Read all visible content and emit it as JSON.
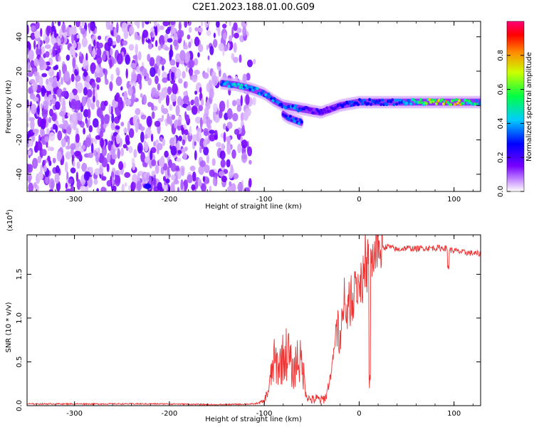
{
  "title": "C2E1.2023.188.01.00.G09",
  "chart_data": [
    {
      "type": "heatmap",
      "xlabel": "Height of straight line (km)",
      "ylabel": "Frequency (Hz)",
      "xlim": [
        -350,
        128
      ],
      "ylim": [
        -50,
        49
      ],
      "xticks": [
        "-300",
        "-200",
        "-100",
        "0",
        "100"
      ],
      "yticks": [
        "-40",
        "-20",
        "0",
        "20",
        "40"
      ],
      "colorbar": {
        "label": "Normalized spectral amplitude",
        "range": [
          0,
          1
        ],
        "ticks": [
          "0.0",
          "0.2",
          "0.4",
          "0.6",
          "0.8"
        ],
        "colormap": [
          "#ffffff",
          "#8800ff",
          "#0000ff",
          "#00ffff",
          "#00ff00",
          "#ffff00",
          "#ff0000",
          "#ff0080"
        ]
      },
      "features": {
        "noise_region_x": [
          -350,
          -110
        ],
        "noise_amplitude": 0.15,
        "signal_trace": {
          "x": [
            -145,
            -130,
            -115,
            -100,
            -90,
            -80,
            -70,
            -60,
            -50,
            -40,
            -30,
            -20,
            -10,
            0,
            20,
            50,
            80,
            100,
            128
          ],
          "y": [
            13,
            12,
            10,
            7,
            3,
            0,
            -1,
            -2,
            -3,
            -4,
            -2,
            0,
            1,
            2,
            2,
            2,
            2,
            2,
            2
          ],
          "amplitude": [
            0.35,
            0.4,
            0.4,
            0.35,
            0.35,
            0.3,
            0.35,
            0.3,
            0.2,
            0.2,
            0.2,
            0.25,
            0.3,
            0.3,
            0.3,
            0.35,
            0.7,
            0.75,
            0.4
          ]
        },
        "branch_trace": {
          "x": [
            -80,
            -75,
            -70,
            -65,
            -60
          ],
          "y": [
            -5,
            -7,
            -8,
            -9,
            -10
          ],
          "amplitude": [
            0.25,
            0.3,
            0.3,
            0.35,
            0.3
          ]
        },
        "spot": {
          "x": -223,
          "y": -47,
          "amplitude": 0.25
        }
      }
    },
    {
      "type": "line",
      "xlabel": "Height of straight line (km)",
      "ylabel": "SNR (10 * v/v)",
      "multiplier": "(x10",
      "multiplier_exp": "4",
      "multiplier_close": ")",
      "xlim": [
        -350,
        128
      ],
      "ylim": [
        0,
        1.95
      ],
      "xticks": [
        "-300",
        "-200",
        "-100",
        "0",
        "100"
      ],
      "yticks": [
        "0.0",
        "0.5",
        "1.0",
        "1.5"
      ],
      "color": "#ee3333",
      "series": [
        {
          "x": [
            -350,
            -300,
            -250,
            -200,
            -150,
            -110,
            -100,
            -95,
            -90,
            -85,
            -80,
            -75,
            -70,
            -65,
            -60,
            -55,
            -50,
            -45,
            -40,
            -35,
            -30,
            -25,
            -20,
            -15,
            -10,
            -5,
            0,
            5,
            10,
            15,
            20,
            25,
            30,
            35,
            40,
            50,
            60,
            70,
            80,
            90,
            95,
            100,
            110,
            120,
            128
          ],
          "y": [
            0.02,
            0.02,
            0.02,
            0.02,
            0.01,
            0.02,
            0.05,
            0.2,
            0.5,
            0.45,
            0.55,
            0.62,
            0.35,
            0.55,
            0.45,
            0.1,
            0.06,
            0.08,
            0.06,
            0.1,
            0.35,
            0.75,
            0.9,
            1.05,
            1.15,
            1.3,
            1.4,
            1.45,
            1.6,
            1.7,
            1.75,
            1.8,
            1.82,
            1.8,
            1.78,
            1.8,
            1.79,
            1.8,
            1.8,
            1.8,
            1.78,
            1.77,
            1.75,
            1.74,
            1.73
          ]
        }
      ]
    }
  ]
}
